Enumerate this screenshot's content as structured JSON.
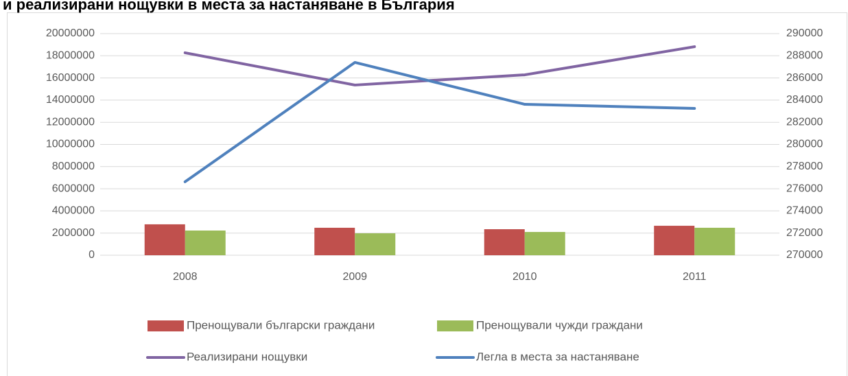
{
  "chart_data": {
    "type": "bar",
    "title": "и реализирани нощувки в места за настаняване в България",
    "categories": [
      "2008",
      "2009",
      "2010",
      "2011"
    ],
    "series": [
      {
        "name": "Пренощували български граждани",
        "type": "bar",
        "color": "#c0504d",
        "values": [
          2790000,
          2480000,
          2350000,
          2660000
        ]
      },
      {
        "name": "Пренощували чужди граждани",
        "type": "bar",
        "color": "#9bbb59",
        "values": [
          2230000,
          1980000,
          2100000,
          2480000
        ]
      },
      {
        "name": "Реализирани нощувки",
        "type": "line",
        "color": "#8064a2",
        "values": [
          18270000,
          15360000,
          16280000,
          18820000
        ]
      },
      {
        "name": "Легла в места за настаняване",
        "type": "line",
        "axis": "y2",
        "color": "#4f81bd",
        "values": [
          276630,
          287400,
          283620,
          283250
        ]
      }
    ],
    "ylim": [
      0,
      20000000
    ],
    "yticks": [
      0,
      2000000,
      4000000,
      6000000,
      8000000,
      10000000,
      12000000,
      14000000,
      16000000,
      18000000,
      20000000
    ],
    "y2lim": [
      270000,
      290000
    ],
    "y2ticks": [
      270000,
      272000,
      274000,
      276000,
      278000,
      280000,
      282000,
      284000,
      286000,
      288000,
      290000
    ],
    "grid": true,
    "legend": "bottom"
  }
}
